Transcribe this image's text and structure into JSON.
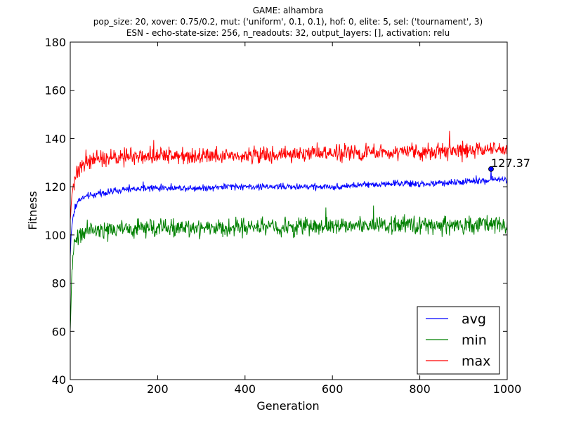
{
  "chart_data": {
    "type": "line",
    "title_lines": [
      "GAME: alhambra",
      "pop_size: 20, xover: 0.75/0.2, mut: ('uniform', 0.1, 0.1), hof: 0, elite: 5, sel: ('tournament', 3)",
      "ESN - echo-state-size: 256, n_readouts: 32, output_layers: [], activation: relu"
    ],
    "xlabel": "Generation",
    "ylabel": "Fitness",
    "xlim": [
      0,
      1000
    ],
    "ylim": [
      40,
      180
    ],
    "xticks": [
      0,
      200,
      400,
      600,
      800,
      1000
    ],
    "yticks": [
      40,
      60,
      80,
      100,
      120,
      140,
      160,
      180
    ],
    "grid": false,
    "legend_position": "lower-right",
    "series": [
      {
        "name": "avg",
        "color": "#0000ff",
        "x": [
          0,
          2,
          5,
          10,
          15,
          20,
          30,
          40,
          50,
          60,
          80,
          100,
          120,
          140,
          160,
          180,
          200,
          250,
          300,
          350,
          400,
          450,
          500,
          550,
          600,
          650,
          700,
          750,
          800,
          850,
          900,
          950,
          965,
          1000
        ],
        "values": [
          91,
          100,
          106,
          110,
          113,
          114.5,
          115.5,
          116,
          116.5,
          117,
          117.5,
          118,
          118.5,
          119,
          119,
          119.5,
          119.5,
          119.5,
          119.5,
          120,
          120,
          120,
          120,
          120,
          120,
          120.5,
          121,
          121.5,
          121,
          121.5,
          122,
          122.5,
          123,
          123
        ],
        "noise": 2.0
      },
      {
        "name": "min",
        "color": "#008000",
        "x": [
          0,
          2,
          4,
          6,
          10,
          15,
          20,
          30,
          50,
          100,
          200,
          300,
          400,
          500,
          600,
          700,
          800,
          900,
          1000
        ],
        "values": [
          60,
          72,
          86,
          92,
          96,
          99,
          100,
          101,
          102,
          102.5,
          103,
          103,
          103.5,
          103.5,
          104,
          104,
          104,
          104,
          104
        ],
        "noise": 5.5
      },
      {
        "name": "max",
        "color": "#ff0000",
        "x": [
          0,
          2,
          5,
          10,
          15,
          20,
          30,
          50,
          100,
          200,
          300,
          400,
          500,
          600,
          700,
          800,
          900,
          1000
        ],
        "values": [
          106,
          112,
          118,
          122,
          126,
          128,
          130,
          131,
          132,
          133,
          133,
          133,
          133.5,
          134,
          134,
          134.5,
          135,
          135
        ],
        "noise": 5.0
      }
    ],
    "highlight_point": {
      "x": 963,
      "y": 127.37,
      "label": "127.37"
    }
  }
}
